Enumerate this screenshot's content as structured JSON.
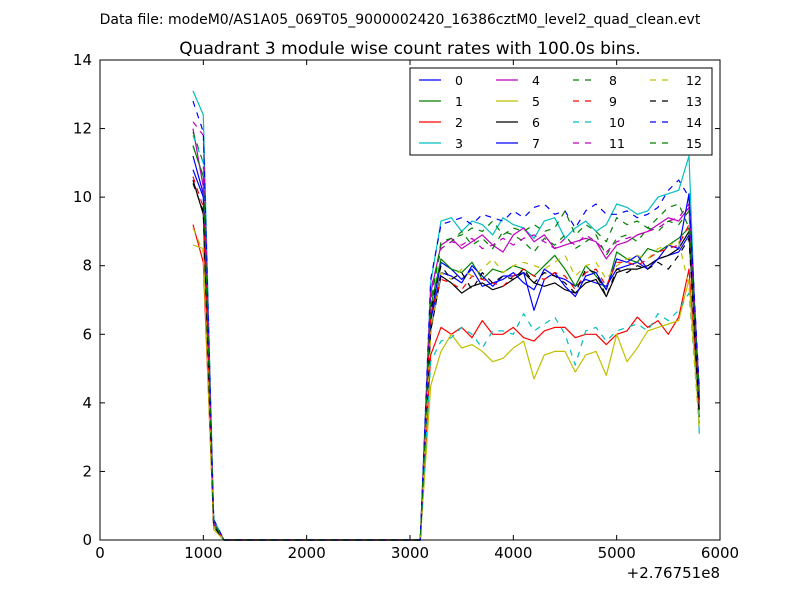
{
  "chart_data": {
    "type": "line",
    "suptitle": "Data file: modeM0/AS1A05_069T05_9000002420_16386cztM0_level2_quad_clean.evt",
    "title": "Quadrant 3 module wise count rates with 100.0s bins.",
    "xlabel": "",
    "ylabel": "",
    "x_offset_label": "+2.76751e8",
    "xlim": [
      0,
      6000
    ],
    "ylim": [
      0,
      14
    ],
    "x_ticks": [
      0,
      1000,
      2000,
      3000,
      4000,
      5000,
      6000
    ],
    "y_ticks": [
      0,
      2,
      4,
      6,
      8,
      10,
      12,
      14
    ],
    "x_tick_labels": [
      "0",
      "1000",
      "2000",
      "3000",
      "4000",
      "5000",
      "6000"
    ],
    "y_tick_labels": [
      "0",
      "2",
      "4",
      "6",
      "8",
      "10",
      "12",
      "14"
    ],
    "legend": {
      "location": "top-right",
      "columns": 4
    },
    "x": [
      900,
      1000,
      1100,
      1200,
      1300,
      1400,
      1500,
      1600,
      1700,
      1800,
      1900,
      2000,
      2100,
      2200,
      2300,
      2400,
      2500,
      2600,
      2700,
      2800,
      2900,
      3000,
      3100,
      3200,
      3300,
      3400,
      3500,
      3600,
      3700,
      3800,
      3900,
      4000,
      4100,
      4200,
      4300,
      4400,
      4500,
      4600,
      4700,
      4800,
      4900,
      5000,
      5100,
      5200,
      5300,
      5400,
      5500,
      5600,
      5700,
      5800
    ],
    "series": [
      {
        "name": "0",
        "color": "#0000ff",
        "dash": "solid",
        "values": [
          11.2,
          10.1,
          0.5,
          0,
          0,
          0,
          0,
          0,
          0,
          0,
          0,
          0,
          0,
          0,
          0,
          0,
          0,
          0,
          0,
          0,
          0,
          0,
          0,
          6.5,
          8.1,
          7.9,
          7.6,
          7.9,
          7.4,
          7.5,
          7.6,
          7.8,
          7.5,
          7.3,
          7.9,
          7.7,
          7.6,
          7.4,
          7.6,
          7.5,
          7.4,
          7.9,
          8.0,
          8.1,
          7.9,
          8.2,
          8.3,
          8.4,
          8.9,
          4.0
        ]
      },
      {
        "name": "1",
        "color": "#008000",
        "dash": "solid",
        "values": [
          11.5,
          10.6,
          0.5,
          0,
          0,
          0,
          0,
          0,
          0,
          0,
          0,
          0,
          0,
          0,
          0,
          0,
          0,
          0,
          0,
          0,
          0,
          0,
          0,
          6.8,
          8.2,
          7.9,
          7.8,
          8.1,
          7.6,
          7.9,
          7.8,
          8.0,
          7.9,
          7.7,
          8.0,
          8.3,
          7.9,
          7.4,
          8.0,
          7.7,
          7.3,
          8.4,
          8.2,
          8.1,
          8.5,
          8.4,
          8.6,
          8.8,
          9.1,
          4.1
        ]
      },
      {
        "name": "2",
        "color": "#ff0000",
        "dash": "solid",
        "values": [
          9.2,
          8.1,
          0.4,
          0,
          0,
          0,
          0,
          0,
          0,
          0,
          0,
          0,
          0,
          0,
          0,
          0,
          0,
          0,
          0,
          0,
          0,
          0,
          0,
          5.4,
          6.2,
          6.0,
          6.2,
          5.9,
          6.4,
          6.0,
          6.0,
          6.2,
          5.9,
          5.8,
          6.1,
          6.2,
          6.2,
          5.9,
          6.0,
          6.0,
          5.7,
          6.0,
          6.1,
          6.5,
          6.2,
          6.4,
          6.0,
          6.5,
          7.9,
          3.6
        ]
      },
      {
        "name": "3",
        "color": "#00bfbf",
        "dash": "solid",
        "values": [
          13.1,
          12.4,
          0.6,
          0,
          0,
          0,
          0,
          0,
          0,
          0,
          0,
          0,
          0,
          0,
          0,
          0,
          0,
          0,
          0,
          0,
          0,
          0,
          0,
          7.5,
          9.3,
          9.4,
          9.0,
          9.3,
          9.2,
          8.9,
          9.4,
          9.2,
          9.1,
          8.8,
          9.3,
          9.4,
          8.8,
          9.1,
          9.3,
          9.0,
          9.2,
          9.8,
          9.7,
          9.5,
          9.6,
          10.0,
          10.1,
          10.2,
          11.2,
          3.1
        ]
      },
      {
        "name": "4",
        "color": "#bf00bf",
        "dash": "solid",
        "values": [
          12.0,
          10.3,
          0.5,
          0,
          0,
          0,
          0,
          0,
          0,
          0,
          0,
          0,
          0,
          0,
          0,
          0,
          0,
          0,
          0,
          0,
          0,
          0,
          0,
          7.2,
          8.6,
          8.8,
          8.5,
          8.7,
          8.9,
          8.6,
          8.4,
          8.9,
          9.1,
          8.7,
          8.9,
          8.5,
          8.6,
          8.7,
          8.8,
          8.7,
          8.2,
          8.6,
          8.7,
          8.9,
          9.0,
          9.2,
          9.4,
          9.3,
          9.7,
          4.3
        ]
      },
      {
        "name": "5",
        "color": "#bfbf00",
        "dash": "solid",
        "values": [
          8.6,
          8.5,
          0.3,
          0,
          0,
          0,
          0,
          0,
          0,
          0,
          0,
          0,
          0,
          0,
          0,
          0,
          0,
          0,
          0,
          0,
          0,
          0,
          0,
          4.5,
          5.5,
          6.0,
          5.6,
          5.7,
          5.5,
          5.2,
          5.3,
          5.6,
          5.8,
          4.7,
          5.4,
          5.5,
          5.5,
          4.9,
          5.4,
          5.5,
          4.8,
          6.0,
          5.2,
          5.6,
          6.1,
          6.2,
          6.3,
          6.4,
          7.6,
          3.4
        ]
      },
      {
        "name": "6",
        "color": "#000000",
        "dash": "solid",
        "values": [
          10.5,
          9.5,
          0.4,
          0,
          0,
          0,
          0,
          0,
          0,
          0,
          0,
          0,
          0,
          0,
          0,
          0,
          0,
          0,
          0,
          0,
          0,
          0,
          0,
          6.1,
          7.7,
          7.5,
          7.2,
          7.4,
          7.5,
          7.3,
          7.4,
          7.6,
          7.8,
          7.5,
          7.4,
          7.5,
          7.3,
          7.2,
          7.5,
          7.6,
          7.1,
          7.8,
          7.9,
          7.9,
          8.0,
          8.2,
          8.3,
          8.5,
          9.0,
          3.8
        ]
      },
      {
        "name": "7",
        "color": "#0000ff",
        "dash": "solid",
        "values": [
          10.8,
          10.0,
          0.4,
          0,
          0,
          0,
          0,
          0,
          0,
          0,
          0,
          0,
          0,
          0,
          0,
          0,
          0,
          0,
          0,
          0,
          0,
          0,
          0,
          6.4,
          7.8,
          7.7,
          7.5,
          8.0,
          7.7,
          7.4,
          7.7,
          7.7,
          7.8,
          6.7,
          7.6,
          7.8,
          7.4,
          7.1,
          7.7,
          7.8,
          7.3,
          8.2,
          8.1,
          8.3,
          7.9,
          8.2,
          8.6,
          8.5,
          10.1,
          4.1
        ]
      },
      {
        "name": "8",
        "color": "#008000",
        "dash": "dashed",
        "values": [
          11.9,
          11.0,
          0.5,
          0,
          0,
          0,
          0,
          0,
          0,
          0,
          0,
          0,
          0,
          0,
          0,
          0,
          0,
          0,
          0,
          0,
          0,
          0,
          0,
          7.0,
          8.5,
          8.7,
          9.0,
          8.6,
          8.8,
          8.5,
          9.0,
          8.9,
          8.7,
          8.4,
          8.8,
          8.6,
          8.9,
          8.5,
          8.7,
          8.9,
          8.3,
          8.8,
          8.9,
          8.7,
          9.1,
          9.0,
          9.3,
          9.2,
          9.6,
          4.2
        ]
      },
      {
        "name": "9",
        "color": "#ff0000",
        "dash": "dashed",
        "values": [
          10.6,
          9.7,
          0.4,
          0,
          0,
          0,
          0,
          0,
          0,
          0,
          0,
          0,
          0,
          0,
          0,
          0,
          0,
          0,
          0,
          0,
          0,
          0,
          0,
          6.6,
          7.6,
          7.5,
          7.3,
          7.7,
          7.6,
          7.5,
          7.4,
          7.7,
          7.9,
          7.7,
          7.6,
          7.8,
          7.7,
          7.3,
          7.8,
          7.9,
          7.4,
          8.1,
          8.1,
          8.0,
          8.2,
          8.4,
          8.5,
          8.6,
          9.2,
          3.9
        ]
      },
      {
        "name": "10",
        "color": "#00bfbf",
        "dash": "dashed",
        "values": [
          11.8,
          11.0,
          0.5,
          0,
          0,
          0,
          0,
          0,
          0,
          0,
          0,
          0,
          0,
          0,
          0,
          0,
          0,
          0,
          0,
          0,
          0,
          0,
          0,
          5.2,
          5.8,
          5.9,
          6.2,
          6.0,
          5.6,
          6.1,
          6.1,
          6.0,
          6.6,
          6.1,
          6.3,
          6.5,
          6.0,
          5.1,
          6.1,
          6.2,
          5.8,
          6.1,
          6.2,
          6.3,
          6.1,
          6.6,
          6.4,
          6.7,
          7.2,
          3.4
        ]
      },
      {
        "name": "11",
        "color": "#bf00bf",
        "dash": "dashed",
        "values": [
          12.2,
          11.8,
          0.5,
          0,
          0,
          0,
          0,
          0,
          0,
          0,
          0,
          0,
          0,
          0,
          0,
          0,
          0,
          0,
          0,
          0,
          0,
          0,
          0,
          7.3,
          8.5,
          8.7,
          8.6,
          8.8,
          8.5,
          8.6,
          8.8,
          8.6,
          8.8,
          8.9,
          8.7,
          8.5,
          8.8,
          8.6,
          8.9,
          8.7,
          8.4,
          8.7,
          8.8,
          8.9,
          9.0,
          9.1,
          9.3,
          9.4,
          9.8,
          4.4
        ]
      },
      {
        "name": "12",
        "color": "#bfbf00",
        "dash": "dashed",
        "values": [
          9.1,
          8.4,
          0.4,
          0,
          0,
          0,
          0,
          0,
          0,
          0,
          0,
          0,
          0,
          0,
          0,
          0,
          0,
          0,
          0,
          0,
          0,
          0,
          0,
          6.0,
          7.8,
          7.6,
          7.9,
          7.7,
          7.9,
          8.2,
          7.8,
          8.0,
          8.1,
          8.0,
          7.9,
          8.1,
          8.3,
          7.7,
          8.0,
          8.1,
          7.6,
          8.0,
          8.2,
          8.3,
          8.2,
          8.5,
          8.6,
          8.7,
          7.4,
          3.2
        ]
      },
      {
        "name": "13",
        "color": "#000000",
        "dash": "dashed",
        "values": [
          10.4,
          9.6,
          0.4,
          0,
          0,
          0,
          0,
          0,
          0,
          0,
          0,
          0,
          0,
          0,
          0,
          0,
          0,
          0,
          0,
          0,
          0,
          0,
          0,
          6.7,
          8.0,
          7.6,
          7.8,
          7.3,
          7.8,
          7.5,
          7.7,
          7.6,
          7.9,
          7.5,
          7.8,
          7.7,
          7.5,
          7.2,
          7.9,
          7.8,
          7.1,
          7.9,
          7.8,
          8.0,
          7.9,
          8.1,
          7.9,
          8.3,
          8.8,
          3.6
        ]
      },
      {
        "name": "14",
        "color": "#0000ff",
        "dash": "dashed",
        "values": [
          12.8,
          11.9,
          0.6,
          0,
          0,
          0,
          0,
          0,
          0,
          0,
          0,
          0,
          0,
          0,
          0,
          0,
          0,
          0,
          0,
          0,
          0,
          0,
          0,
          7.6,
          9.2,
          9.3,
          9.4,
          9.2,
          9.5,
          9.4,
          9.3,
          9.6,
          9.4,
          9.7,
          9.8,
          9.5,
          9.6,
          9.1,
          9.6,
          9.8,
          9.5,
          9.5,
          9.6,
          9.4,
          9.5,
          9.7,
          10.2,
          10.5,
          10.0,
          4.4
        ]
      },
      {
        "name": "15",
        "color": "#008000",
        "dash": "dashed",
        "values": [
          11.5,
          10.6,
          0.5,
          0,
          0,
          0,
          0,
          0,
          0,
          0,
          0,
          0,
          0,
          0,
          0,
          0,
          0,
          0,
          0,
          0,
          0,
          0,
          0,
          6.9,
          8.7,
          8.8,
          8.9,
          9.1,
          9.0,
          9.3,
          8.9,
          9.1,
          9.0,
          9.2,
          9.0,
          9.1,
          9.6,
          8.9,
          9.2,
          9.0,
          8.7,
          9.4,
          9.2,
          9.3,
          9.1,
          9.4,
          9.7,
          9.8,
          9.1,
          4.2
        ]
      }
    ]
  }
}
